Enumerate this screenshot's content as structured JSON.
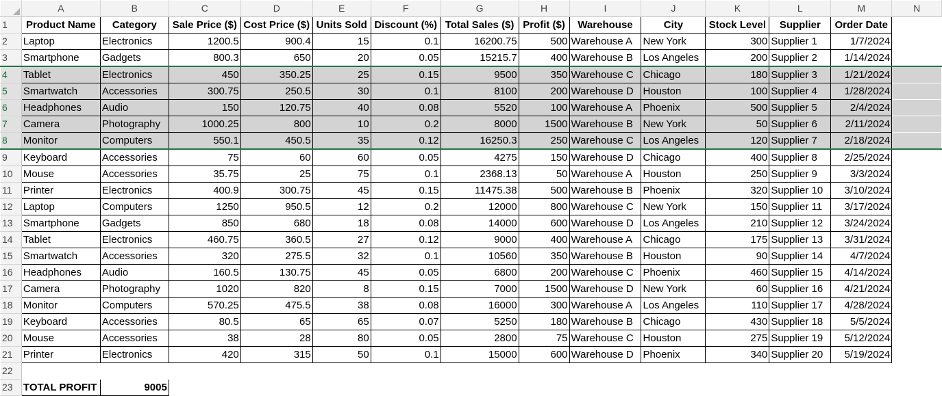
{
  "columns": [
    "A",
    "B",
    "C",
    "D",
    "E",
    "F",
    "G",
    "H",
    "I",
    "J",
    "K",
    "L",
    "M",
    "N"
  ],
  "headers": [
    "Product Name",
    "Category",
    "Sale Price ($)",
    "Cost Price ($)",
    "Units Sold",
    "Discount (%)",
    "Total Sales ($)",
    "Profit ($)",
    "Warehouse",
    "City",
    "Stock Level",
    "Supplier",
    "Order Date"
  ],
  "rows": [
    [
      "Laptop",
      "Electronics",
      "1200.5",
      "900.4",
      "15",
      "0.1",
      "16200.75",
      "500",
      "Warehouse A",
      "New York",
      "300",
      "Supplier 1",
      "1/7/2024"
    ],
    [
      "Smartphone",
      "Gadgets",
      "800.3",
      "650",
      "20",
      "0.05",
      "15215.7",
      "400",
      "Warehouse B",
      "Los Angeles",
      "200",
      "Supplier 2",
      "1/14/2024"
    ],
    [
      "Tablet",
      "Electronics",
      "450",
      "350.25",
      "25",
      "0.15",
      "9500",
      "350",
      "Warehouse C",
      "Chicago",
      "180",
      "Supplier 3",
      "1/21/2024"
    ],
    [
      "Smartwatch",
      "Accessories",
      "300.75",
      "250.5",
      "30",
      "0.1",
      "8100",
      "200",
      "Warehouse D",
      "Houston",
      "100",
      "Supplier 4",
      "1/28/2024"
    ],
    [
      "Headphones",
      "Audio",
      "150",
      "120.75",
      "40",
      "0.08",
      "5520",
      "100",
      "Warehouse A",
      "Phoenix",
      "500",
      "Supplier 5",
      "2/4/2024"
    ],
    [
      "Camera",
      "Photography",
      "1000.25",
      "800",
      "10",
      "0.2",
      "8000",
      "1500",
      "Warehouse B",
      "New York",
      "50",
      "Supplier 6",
      "2/11/2024"
    ],
    [
      "Monitor",
      "Computers",
      "550.1",
      "450.5",
      "35",
      "0.12",
      "16250.3",
      "250",
      "Warehouse C",
      "Los Angeles",
      "120",
      "Supplier 7",
      "2/18/2024"
    ],
    [
      "Keyboard",
      "Accessories",
      "75",
      "60",
      "60",
      "0.05",
      "4275",
      "150",
      "Warehouse D",
      "Chicago",
      "400",
      "Supplier 8",
      "2/25/2024"
    ],
    [
      "Mouse",
      "Accessories",
      "35.75",
      "25",
      "75",
      "0.1",
      "2368.13",
      "50",
      "Warehouse A",
      "Houston",
      "250",
      "Supplier 9",
      "3/3/2024"
    ],
    [
      "Printer",
      "Electronics",
      "400.9",
      "300.75",
      "45",
      "0.15",
      "11475.38",
      "500",
      "Warehouse B",
      "Phoenix",
      "320",
      "Supplier 10",
      "3/10/2024"
    ],
    [
      "Laptop",
      "Computers",
      "1250",
      "950.5",
      "12",
      "0.2",
      "12000",
      "800",
      "Warehouse C",
      "New York",
      "150",
      "Supplier 11",
      "3/17/2024"
    ],
    [
      "Smartphone",
      "Gadgets",
      "850",
      "680",
      "18",
      "0.08",
      "14000",
      "600",
      "Warehouse D",
      "Los Angeles",
      "210",
      "Supplier 12",
      "3/24/2024"
    ],
    [
      "Tablet",
      "Electronics",
      "460.75",
      "360.5",
      "27",
      "0.12",
      "9000",
      "400",
      "Warehouse A",
      "Chicago",
      "175",
      "Supplier 13",
      "3/31/2024"
    ],
    [
      "Smartwatch",
      "Accessories",
      "320",
      "275.5",
      "32",
      "0.1",
      "10560",
      "350",
      "Warehouse B",
      "Houston",
      "90",
      "Supplier 14",
      "4/7/2024"
    ],
    [
      "Headphones",
      "Audio",
      "160.5",
      "130.75",
      "45",
      "0.05",
      "6800",
      "200",
      "Warehouse C",
      "Phoenix",
      "460",
      "Supplier 15",
      "4/14/2024"
    ],
    [
      "Camera",
      "Photography",
      "1020",
      "820",
      "8",
      "0.15",
      "7000",
      "1500",
      "Warehouse D",
      "New York",
      "60",
      "Supplier 16",
      "4/21/2024"
    ],
    [
      "Monitor",
      "Computers",
      "570.25",
      "475.5",
      "38",
      "0.08",
      "16000",
      "300",
      "Warehouse A",
      "Los Angeles",
      "110",
      "Supplier 17",
      "4/28/2024"
    ],
    [
      "Keyboard",
      "Accessories",
      "80.5",
      "65",
      "65",
      "0.07",
      "5250",
      "180",
      "Warehouse B",
      "Chicago",
      "430",
      "Supplier 18",
      "5/5/2024"
    ],
    [
      "Mouse",
      "Accessories",
      "38",
      "28",
      "80",
      "0.05",
      "2800",
      "75",
      "Warehouse C",
      "Houston",
      "275",
      "Supplier 19",
      "5/12/2024"
    ],
    [
      "Printer",
      "Electronics",
      "420",
      "315",
      "50",
      "0.1",
      "15000",
      "600",
      "Warehouse D",
      "Phoenix",
      "340",
      "Supplier 20",
      "5/19/2024"
    ]
  ],
  "row_numbers": [
    "1",
    "2",
    "3",
    "4",
    "5",
    "6",
    "7",
    "8",
    "9",
    "10",
    "11",
    "12",
    "13",
    "14",
    "15",
    "16",
    "17",
    "18",
    "19",
    "20",
    "21",
    "22",
    "23"
  ],
  "total": {
    "label": "TOTAL PROFIT",
    "value": "9005"
  },
  "selection": {
    "rows": "4:8",
    "color": "#217346"
  },
  "colors": {
    "header_bg": "#f3f3f3",
    "selected_fill": "#d3d3d3"
  }
}
